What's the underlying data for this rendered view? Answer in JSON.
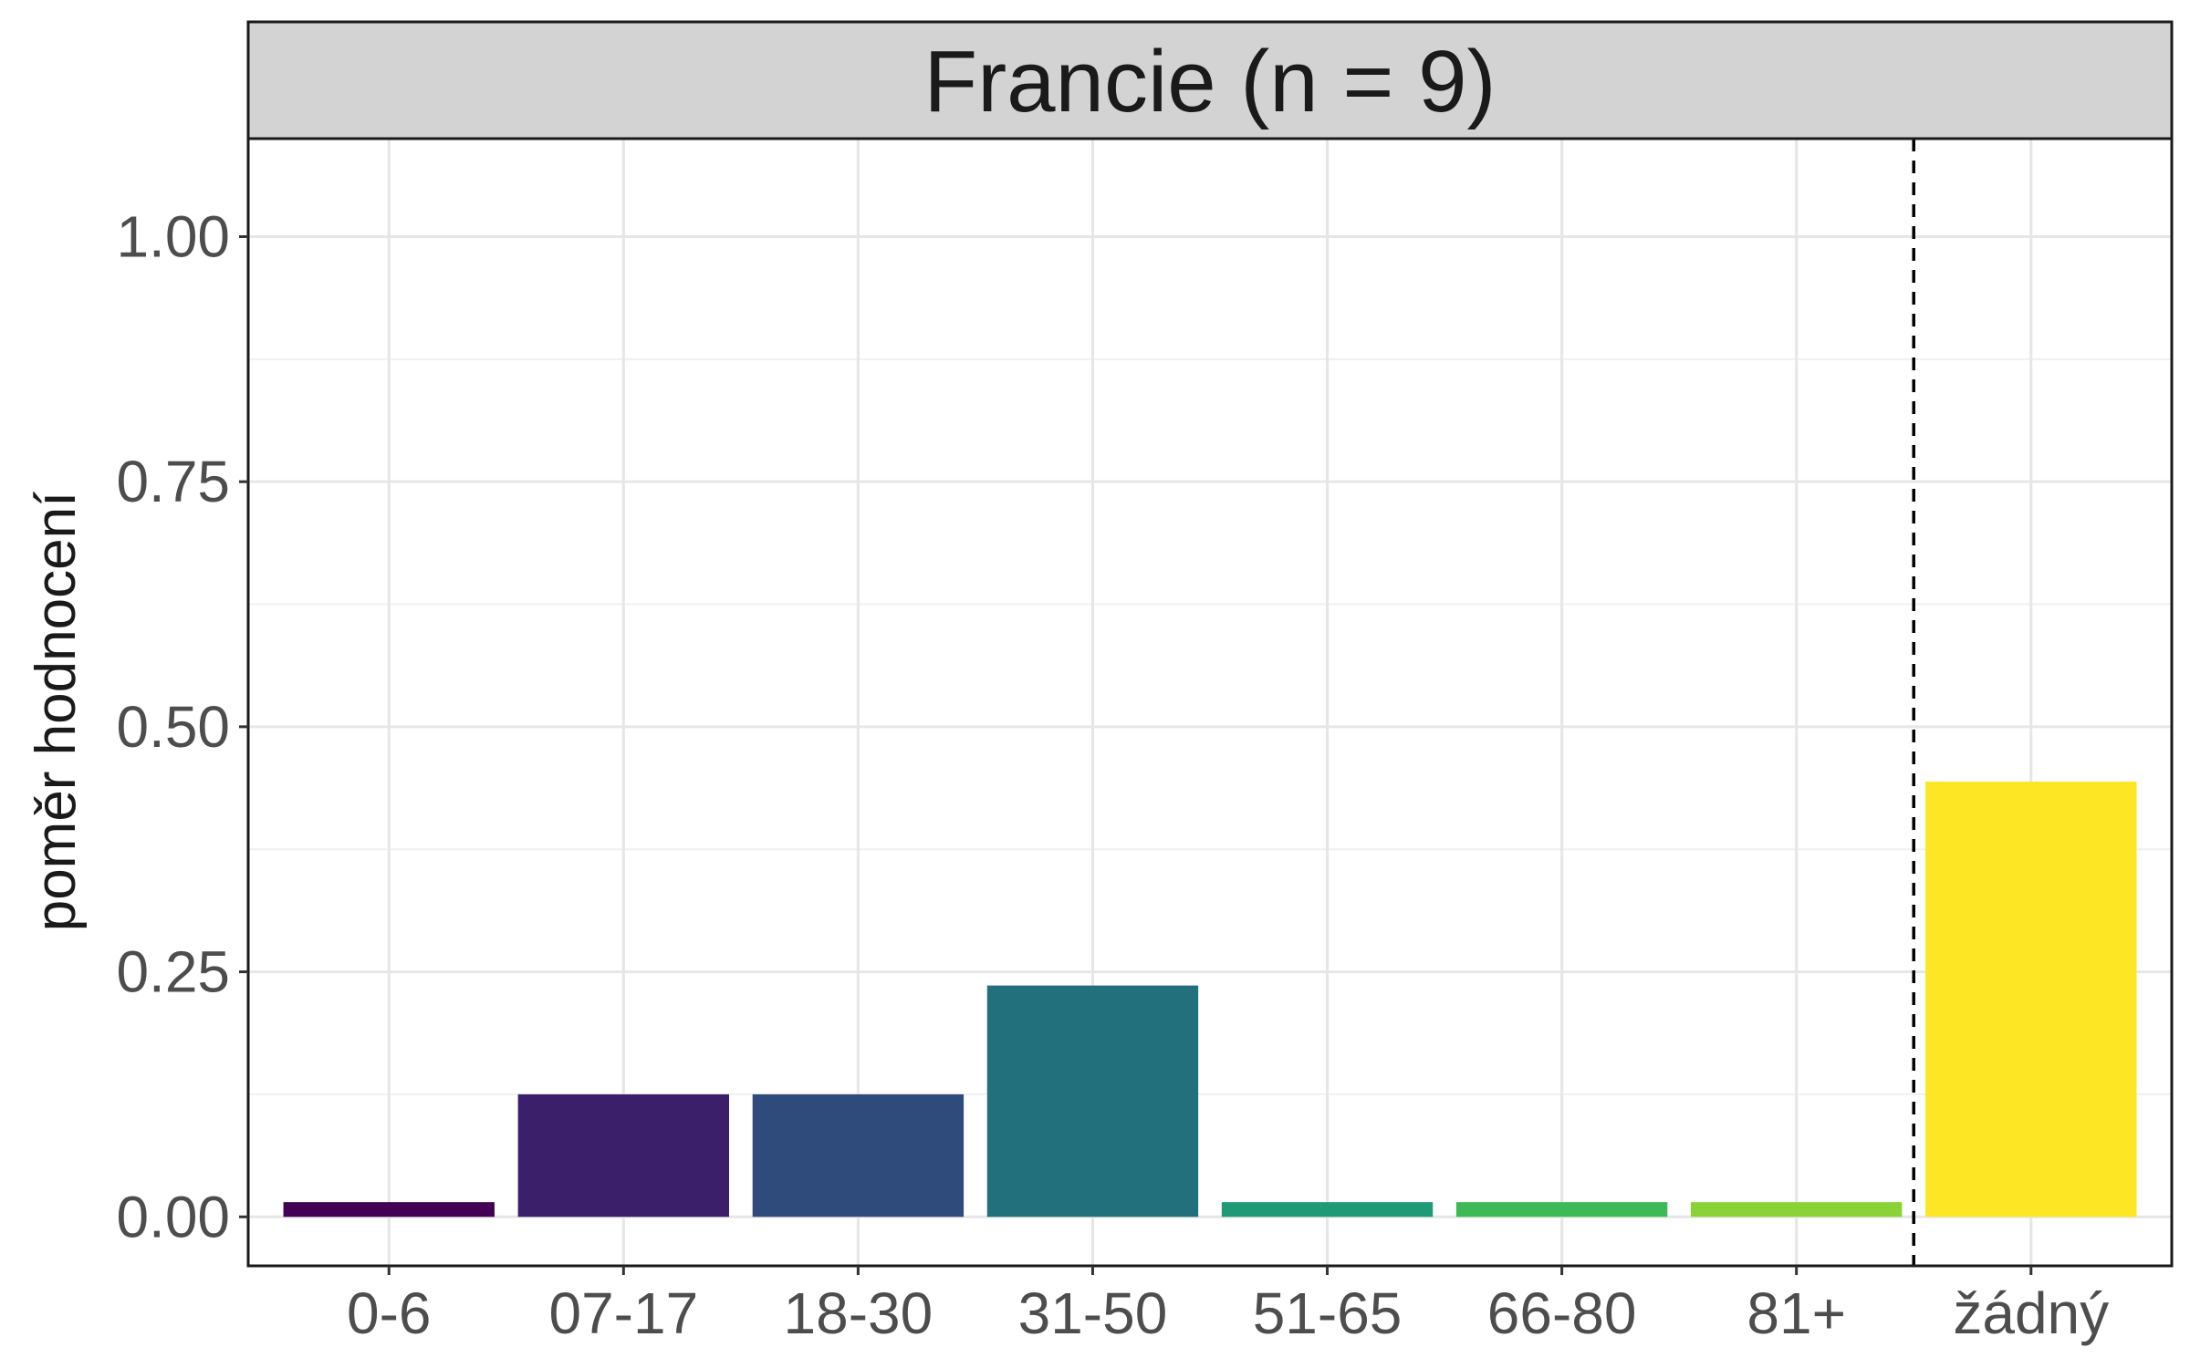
{
  "chart_data": {
    "type": "bar",
    "title": "Francie (n = 9)",
    "xlabel": "",
    "ylabel": "poměr hodnocení",
    "categories": [
      "0-6",
      "07-17",
      "18-30",
      "31-50",
      "51-65",
      "66-80",
      "81+",
      "žádný"
    ],
    "values": [
      0.015,
      0.125,
      0.125,
      0.236,
      0.015,
      0.015,
      0.015,
      0.444
    ],
    "colors": [
      "#440154",
      "#3B1F6A",
      "#2E4B7B",
      "#21707C",
      "#1F9A76",
      "#3DBA55",
      "#8AD336",
      "#FDE725"
    ],
    "ylim": [
      -0.05,
      1.1
    ],
    "yticks": [
      0.0,
      0.25,
      0.5,
      0.75,
      1.0
    ],
    "ytick_labels": [
      "0.00",
      "0.25",
      "0.50",
      "0.75",
      "1.00"
    ],
    "separator": {
      "between": [
        "81+",
        "žádný"
      ],
      "style": "dashed"
    },
    "grid": true,
    "legend": "none"
  }
}
